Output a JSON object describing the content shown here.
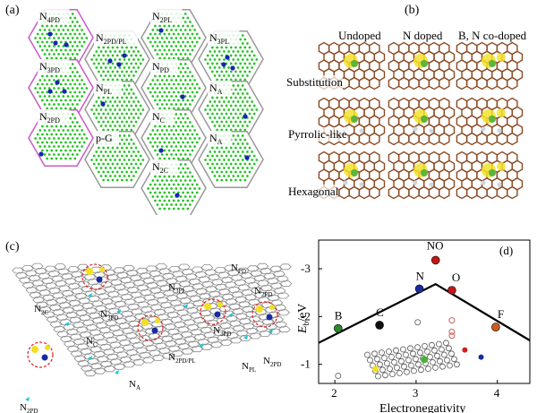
{
  "panel_a": {
    "label": "(a)",
    "hexes": [
      {
        "main": "N",
        "sub": "4PD",
        "border": "#c85ac8"
      },
      {
        "main": "N",
        "sub": "2PD/PL",
        "border": "#999999"
      },
      {
        "main": "N",
        "sub": "2PL",
        "border": "#999999"
      },
      {
        "main": "N",
        "sub": "3PL",
        "border": "#999999"
      },
      {
        "main": "N",
        "sub": "3PD",
        "border": "#c85ac8"
      },
      {
        "main": "N",
        "sub": "PL",
        "border": "#999999"
      },
      {
        "main": "N",
        "sub": "PD",
        "border": "#999999"
      },
      {
        "main": "N",
        "sub": "A",
        "border": "#999999"
      },
      {
        "main": "N",
        "sub": "2PD",
        "border": "#c85ac8"
      },
      {
        "main": "p-G",
        "sub": "",
        "border": "#999999"
      },
      {
        "main": "N",
        "sub": "C",
        "border": "#999999"
      },
      {
        "main": "N",
        "sub": "A",
        "border": "#999999"
      },
      {
        "main": "N",
        "sub": "2C",
        "border": "#999999"
      }
    ]
  },
  "panel_b": {
    "label": "(b)",
    "columns": [
      "Undoped",
      "N doped",
      "B, N co-doped"
    ],
    "rows": [
      "Substitution",
      "Pyrrolic-like",
      "Hexagonal"
    ]
  },
  "panel_c": {
    "label": "(c)",
    "labels": [
      {
        "main": "N",
        "sub": "PD"
      },
      {
        "main": "N",
        "sub": "3PL"
      },
      {
        "main": "N",
        "sub": "2PD"
      },
      {
        "main": "N",
        "sub": "2C"
      },
      {
        "main": "N",
        "sub": "3PD"
      },
      {
        "main": "N",
        "sub": "C"
      },
      {
        "main": "N",
        "sub": "3PD"
      },
      {
        "main": "N",
        "sub": "2PD/PL"
      },
      {
        "main": "N",
        "sub": "2PD"
      },
      {
        "main": "N",
        "sub": "PL"
      },
      {
        "main": "N",
        "sub": "2PD"
      },
      {
        "main": "N",
        "sub": "A"
      }
    ]
  },
  "chart_data": {
    "type": "scatter",
    "panel_label": "(d)",
    "xlabel": "Electronegativity",
    "ylabel_main": "E",
    "ylabel_sub": "b",
    "ylabel_unit": "/eV",
    "xlim": [
      1.8,
      4.4
    ],
    "ylim": [
      -0.6,
      -3.6
    ],
    "xticks": [
      2,
      3,
      4
    ],
    "yticks": [
      -1,
      -2,
      -3
    ],
    "points": [
      {
        "label": "B",
        "x": 2.04,
        "y": -1.75,
        "color": "#2a8a2a"
      },
      {
        "label": "C",
        "x": 2.55,
        "y": -1.82,
        "color": "#111111"
      },
      {
        "label": "N",
        "x": 3.04,
        "y": -2.58,
        "color": "#1a2aa0"
      },
      {
        "label": "O",
        "x": 3.44,
        "y": -2.55,
        "color": "#c01818"
      },
      {
        "label": "NO",
        "x": 3.24,
        "y": -3.18,
        "color": "#c01818"
      },
      {
        "label": "F",
        "x": 3.98,
        "y": -1.78,
        "color": "#d05a20"
      }
    ],
    "volcano_line": [
      [
        1.8,
        -1.45
      ],
      [
        3.24,
        -2.68
      ],
      [
        4.4,
        -1.5
      ]
    ],
    "open_circles": [
      {
        "x": 2.04,
        "y": -0.76,
        "color": "#777777"
      },
      {
        "x": 3.02,
        "y": -1.88,
        "color": "#777777"
      },
      {
        "x": 3.44,
        "y": -1.92,
        "color": "#d06060"
      },
      {
        "x": 3.44,
        "y": -1.68,
        "color": "#d06060"
      },
      {
        "x": 3.44,
        "y": -1.6,
        "color": "#d06060"
      }
    ]
  }
}
